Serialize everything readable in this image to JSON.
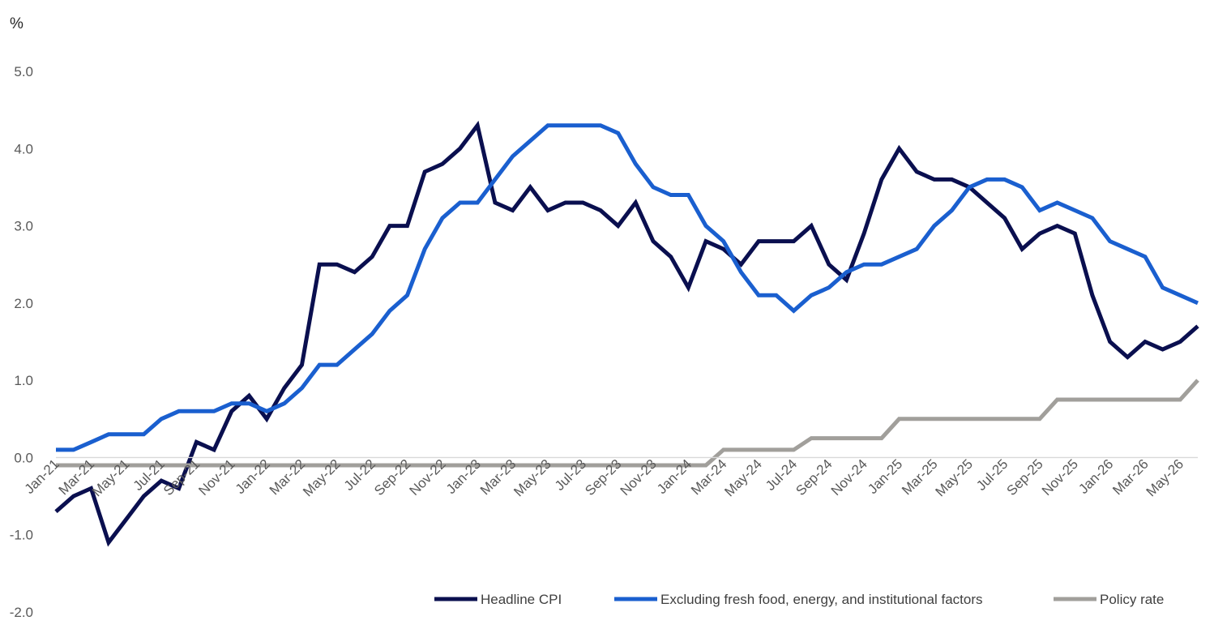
{
  "chart_data": {
    "type": "line",
    "title": "",
    "ylabel": "%",
    "xlabel": "",
    "ylim": [
      -2.0,
      5.0
    ],
    "yticks": [
      "5.0",
      "4.0",
      "3.0",
      "2.0",
      "1.0",
      "0.0",
      "-1.0",
      "-2.0"
    ],
    "grid": false,
    "legend_position": "bottom-right",
    "x": [
      "Jan-21",
      "Feb-21",
      "Mar-21",
      "Apr-21",
      "May-21",
      "Jun-21",
      "Jul-21",
      "Aug-21",
      "Sep-21",
      "Oct-21",
      "Nov-21",
      "Dec-21",
      "Jan-22",
      "Feb-22",
      "Mar-22",
      "Apr-22",
      "May-22",
      "Jun-22",
      "Jul-22",
      "Aug-22",
      "Sep-22",
      "Oct-22",
      "Nov-22",
      "Dec-22",
      "Jan-23",
      "Feb-23",
      "Mar-23",
      "Apr-23",
      "May-23",
      "Jun-23",
      "Jul-23",
      "Aug-23",
      "Sep-23",
      "Oct-23",
      "Nov-23",
      "Dec-23",
      "Jan-24",
      "Feb-24",
      "Mar-24",
      "Apr-24",
      "May-24",
      "Jun-24",
      "Jul-24",
      "Aug-24",
      "Sep-24",
      "Oct-24",
      "Nov-24",
      "Dec-24",
      "Jan-25",
      "Feb-25",
      "Mar-25",
      "Apr-25",
      "May-25",
      "Jun-25",
      "Jul-25",
      "Aug-25",
      "Sep-25",
      "Oct-25",
      "Nov-25",
      "Dec-25",
      "Jan-26",
      "Feb-26",
      "Mar-26",
      "Apr-26",
      "May-26",
      "Jun-26"
    ],
    "xtick_labels": [
      "Jan-21",
      "Mar-21",
      "May-21",
      "Jul-21",
      "Sep-21",
      "Nov-21",
      "Jan-22",
      "Mar-22",
      "May-22",
      "Jul-22",
      "Sep-22",
      "Nov-22",
      "Jan-23",
      "Mar-23",
      "May-23",
      "Jul-23",
      "Sep-23",
      "Nov-23",
      "Jan-24",
      "Mar-24",
      "May-24",
      "Jul-24",
      "Sep-24",
      "Nov-24",
      "Jan-25",
      "Mar-25",
      "May-25",
      "Jul-25",
      "Sep-25",
      "Nov-25",
      "Jan-26",
      "Mar-26",
      "May-26"
    ],
    "series": [
      {
        "name": "Headline CPI",
        "color": "#0a0f4f",
        "values": [
          -0.7,
          -0.5,
          -0.4,
          -1.1,
          -0.8,
          -0.5,
          -0.3,
          -0.4,
          0.2,
          0.1,
          0.6,
          0.8,
          0.5,
          0.9,
          1.2,
          2.5,
          2.5,
          2.4,
          2.6,
          3.0,
          3.0,
          3.7,
          3.8,
          4.0,
          4.3,
          3.3,
          3.2,
          3.5,
          3.2,
          3.3,
          3.3,
          3.2,
          3.0,
          3.3,
          2.8,
          2.6,
          2.2,
          2.8,
          2.7,
          2.5,
          2.8,
          2.8,
          2.8,
          3.0,
          2.5,
          2.3,
          2.9,
          3.6,
          4.0,
          3.7,
          3.6,
          3.6,
          3.5,
          3.3,
          3.1,
          2.7,
          2.9,
          3.0,
          2.9,
          2.1,
          1.5,
          1.3,
          1.5,
          1.4,
          1.5,
          1.7
        ]
      },
      {
        "name": "Excluding fresh food, energy, and institutional factors",
        "color": "#1a5fcf",
        "values": [
          0.1,
          0.1,
          0.2,
          0.3,
          0.3,
          0.3,
          0.5,
          0.6,
          0.6,
          0.6,
          0.7,
          0.7,
          0.6,
          0.7,
          0.9,
          1.2,
          1.2,
          1.4,
          1.6,
          1.9,
          2.1,
          2.7,
          3.1,
          3.3,
          3.3,
          3.6,
          3.9,
          4.1,
          4.3,
          4.3,
          4.3,
          4.3,
          4.2,
          3.8,
          3.5,
          3.4,
          3.4,
          3.0,
          2.8,
          2.4,
          2.1,
          2.1,
          1.9,
          2.1,
          2.2,
          2.4,
          2.5,
          2.5,
          2.6,
          2.7,
          3.0,
          3.2,
          3.5,
          3.6,
          3.6,
          3.5,
          3.2,
          3.3,
          3.2,
          3.1,
          2.8,
          2.7,
          2.6,
          2.2,
          2.1,
          2.0
        ]
      },
      {
        "name": "Policy rate",
        "color": "#a19f9b",
        "values": [
          -0.1,
          -0.1,
          -0.1,
          -0.1,
          -0.1,
          -0.1,
          -0.1,
          -0.1,
          -0.1,
          -0.1,
          -0.1,
          -0.1,
          -0.1,
          -0.1,
          -0.1,
          -0.1,
          -0.1,
          -0.1,
          -0.1,
          -0.1,
          -0.1,
          -0.1,
          -0.1,
          -0.1,
          -0.1,
          -0.1,
          -0.1,
          -0.1,
          -0.1,
          -0.1,
          -0.1,
          -0.1,
          -0.1,
          -0.1,
          -0.1,
          -0.1,
          -0.1,
          -0.1,
          0.1,
          0.1,
          0.1,
          0.1,
          0.1,
          0.25,
          0.25,
          0.25,
          0.25,
          0.25,
          0.5,
          0.5,
          0.5,
          0.5,
          0.5,
          0.5,
          0.5,
          0.5,
          0.5,
          0.75,
          0.75,
          0.75,
          0.75,
          0.75,
          0.75,
          0.75,
          0.75,
          1.0
        ]
      }
    ]
  }
}
